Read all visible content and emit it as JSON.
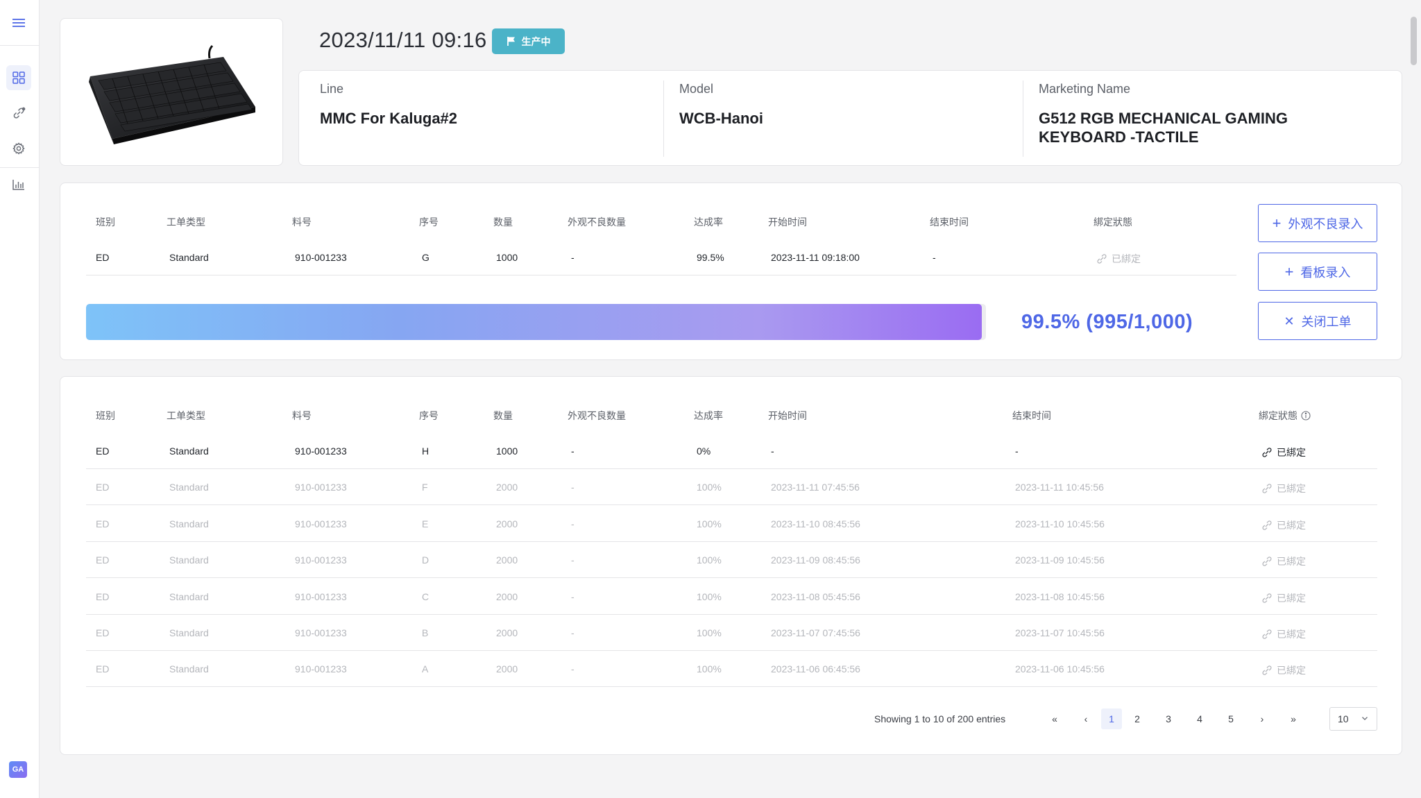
{
  "sidebar": {
    "items": [
      {
        "icon": "menu-icon"
      },
      {
        "icon": "dashboard-grid-icon"
      },
      {
        "icon": "link-icon"
      },
      {
        "icon": "settings-gear-icon"
      },
      {
        "icon": "bar-chart-icon"
      }
    ],
    "logo_text": "GA"
  },
  "header": {
    "datetime": "2023/11/11 09:16",
    "status": "生产中"
  },
  "product_info": {
    "line_label": "Line",
    "line_value": "MMC For Kaluga#2",
    "model_label": "Model",
    "model_value": "WCB-Hanoi",
    "marketing_label": "Marketing Name",
    "marketing_value": "G512 RGB MECHANICAL GAMING KEYBOARD -TACTILE"
  },
  "current_order": {
    "headers": [
      "班别",
      "工单类型",
      "料号",
      "序号",
      "数量",
      "外观不良数量",
      "达成率",
      "开始时间",
      "结束时间",
      "綁定狀態"
    ],
    "row": {
      "shift": "ED",
      "type": "Standard",
      "part": "910-001233",
      "seq": "G",
      "qty": "1000",
      "defects": "-",
      "rate": "99.5%",
      "start": "2023-11-11 09:18:00",
      "end": "-",
      "bind": "已綁定"
    },
    "progress_fraction": 0.995,
    "progress_text": "99.5% (995/1,000)"
  },
  "actions": {
    "defect_entry": "外观不良录入",
    "kanban_entry": "看板录入",
    "close_order": "关闭工单"
  },
  "history": {
    "headers": [
      "班别",
      "工单类型",
      "料号",
      "序号",
      "数量",
      "外观不良数量",
      "达成率",
      "开始时间",
      "结束时间",
      "綁定狀態"
    ],
    "rows": [
      {
        "shift": "ED",
        "type": "Standard",
        "part": "910-001233",
        "seq": "H",
        "qty": "1000",
        "defects": "-",
        "rate": "0%",
        "start": "-",
        "end": "-",
        "bind": "已綁定"
      },
      {
        "shift": "ED",
        "type": "Standard",
        "part": "910-001233",
        "seq": "F",
        "qty": "2000",
        "defects": "-",
        "rate": "100%",
        "start": "2023-11-11 07:45:56",
        "end": "2023-11-11 10:45:56",
        "bind": "已綁定"
      },
      {
        "shift": "ED",
        "type": "Standard",
        "part": "910-001233",
        "seq": "E",
        "qty": "2000",
        "defects": "-",
        "rate": "100%",
        "start": "2023-11-10 08:45:56",
        "end": "2023-11-10 10:45:56",
        "bind": "已綁定"
      },
      {
        "shift": "ED",
        "type": "Standard",
        "part": "910-001233",
        "seq": "D",
        "qty": "2000",
        "defects": "-",
        "rate": "100%",
        "start": "2023-11-09 08:45:56",
        "end": "2023-11-09 10:45:56",
        "bind": "已綁定"
      },
      {
        "shift": "ED",
        "type": "Standard",
        "part": "910-001233",
        "seq": "C",
        "qty": "2000",
        "defects": "-",
        "rate": "100%",
        "start": "2023-11-08 05:45:56",
        "end": "2023-11-08 10:45:56",
        "bind": "已綁定"
      },
      {
        "shift": "ED",
        "type": "Standard",
        "part": "910-001233",
        "seq": "B",
        "qty": "2000",
        "defects": "-",
        "rate": "100%",
        "start": "2023-11-07 07:45:56",
        "end": "2023-11-07 10:45:56",
        "bind": "已綁定"
      },
      {
        "shift": "ED",
        "type": "Standard",
        "part": "910-001233",
        "seq": "A",
        "qty": "2000",
        "defects": "-",
        "rate": "100%",
        "start": "2023-11-06 06:45:56",
        "end": "2023-11-06 10:45:56",
        "bind": "已綁定"
      }
    ]
  },
  "pagination": {
    "showing": "Showing 1 to 10 of 200 entries",
    "pages": [
      "1",
      "2",
      "3",
      "4",
      "5"
    ],
    "current_page": "1",
    "page_size": "10"
  },
  "colors": {
    "accent": "#4e67e6",
    "status_badge": "#4bb3c8",
    "progress_start": "#7ec3f8",
    "progress_end": "#9a6cf2"
  }
}
